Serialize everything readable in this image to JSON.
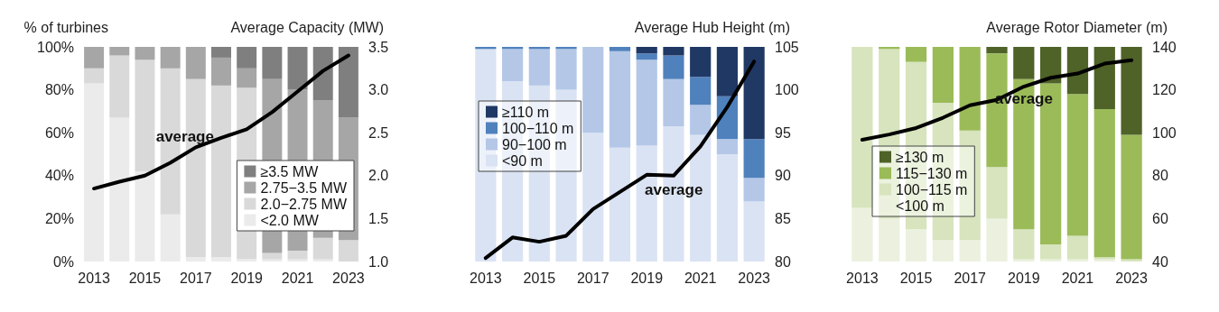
{
  "chart_data": [
    {
      "type": "bar",
      "stacked": true,
      "ylabel": "% of turbines",
      "y2label": "Average Capacity (MW)",
      "categories": [
        "2013",
        null,
        "2015",
        null,
        "2017",
        null,
        "2019",
        null,
        "2021",
        null,
        "2023"
      ],
      "ylim": [
        0,
        100
      ],
      "yticks": [
        {
          "value": 0,
          "label": "0%"
        },
        {
          "value": 20,
          "label": "20%"
        },
        {
          "value": 40,
          "label": "40%"
        },
        {
          "value": 60,
          "label": "60%"
        },
        {
          "value": 80,
          "label": "80%"
        },
        {
          "value": 100,
          "label": "100%"
        }
      ],
      "y2lim": [
        1,
        3.5
      ],
      "y2ticks": [
        {
          "value": 1,
          "label": "1.0"
        },
        {
          "value": 1.5,
          "label": "1.5"
        },
        {
          "value": 2,
          "label": "2.0"
        },
        {
          "value": 2.5,
          "label": "2.5"
        },
        {
          "value": 3,
          "label": "3.0"
        },
        {
          "value": 3.5,
          "label": "3.5"
        }
      ],
      "legend": "bottom right",
      "grid": false,
      "marker": "none",
      "series": [
        {
          "name": "<2.0 MW",
          "color": "#ebebeb",
          "values": [
            83,
            67,
            42,
            22,
            2,
            2,
            1,
            1,
            1,
            1,
            0
          ]
        },
        {
          "name": "2.0−2.75 MW",
          "color": "#d9d9d9",
          "values": [
            7,
            29,
            52,
            68,
            83,
            80,
            80,
            3,
            4,
            10,
            10
          ]
        },
        {
          "name": "2.75−3.5 MW",
          "color": "#a6a6a6",
          "values": [
            10,
            4,
            6,
            10,
            15,
            13,
            9,
            81,
            75,
            64,
            57
          ]
        },
        {
          "name": "≥3.5 MW",
          "color": "#7f7f7f",
          "values": [
            0,
            0,
            0,
            0,
            0,
            5,
            10,
            15,
            20,
            25,
            33
          ]
        },
        {
          "name": "average",
          "type": "line",
          "axis": "y2",
          "color": "#000000",
          "values": [
            1.85,
            1.93,
            2.0,
            2.15,
            2.33,
            2.44,
            2.54,
            2.74,
            2.98,
            3.22,
            3.4
          ]
        }
      ]
    },
    {
      "type": "bar",
      "stacked": true,
      "y2label": "Average Hub Height (m)",
      "categories": [
        "2013",
        null,
        "2015",
        null,
        "2017",
        null,
        "2019",
        null,
        "2021",
        null,
        "2023"
      ],
      "ylim": [
        0,
        100
      ],
      "y2lim": [
        80,
        105
      ],
      "y2ticks": [
        80,
        85,
        90,
        95,
        100,
        105
      ],
      "legend": "top left",
      "grid": false,
      "marker": "none",
      "series": [
        {
          "name": "<90 m",
          "color": "#dae3f3",
          "values": [
            99,
            84,
            82,
            80,
            60,
            53,
            54,
            63,
            59,
            50,
            28
          ]
        },
        {
          "name": "90−100 m",
          "color": "#b4c7e7",
          "values": [
            0,
            15,
            17,
            19,
            40,
            45,
            40,
            22,
            14,
            7,
            11
          ]
        },
        {
          "name": "100−110 m",
          "color": "#4f81bd",
          "values": [
            1,
            1,
            1,
            1,
            0,
            2,
            3,
            11,
            13,
            20,
            18
          ]
        },
        {
          "name": "≥110 m",
          "color": "#203864",
          "values": [
            0,
            0,
            0,
            0,
            0,
            0,
            3,
            4,
            14,
            23,
            43
          ]
        },
        {
          "name": "average",
          "type": "line",
          "axis": "y2",
          "color": "#000000",
          "values": [
            80.4,
            82.8,
            82.3,
            83.0,
            86.1,
            88.1,
            90.1,
            90.0,
            93.4,
            98.0,
            103.3
          ]
        }
      ]
    },
    {
      "type": "bar",
      "stacked": true,
      "y2label": "Average Rotor Diameter (m)",
      "categories": [
        "2013",
        null,
        "2015",
        null,
        "2017",
        null,
        "2019",
        null,
        "2021",
        null,
        "2023"
      ],
      "ylim": [
        0,
        100
      ],
      "y2lim": [
        40,
        140
      ],
      "y2ticks": [
        40,
        60,
        80,
        100,
        120,
        140
      ],
      "legend": "bottom left",
      "grid": false,
      "marker": "none",
      "series": [
        {
          "name": "<100 m",
          "color": "#ebf1de",
          "values": [
            25,
            20,
            15,
            10,
            10,
            20,
            1,
            1,
            1,
            1,
            0
          ]
        },
        {
          "name": "100−115 m",
          "color": "#d7e4bd",
          "values": [
            75,
            79,
            78,
            64,
            51,
            24,
            14,
            7,
            11,
            1,
            1
          ]
        },
        {
          "name": "115−130 m",
          "color": "#9bbb59",
          "values": [
            0,
            1,
            7,
            26,
            39,
            53,
            70,
            75,
            66,
            69,
            58
          ]
        },
        {
          "name": "≥130 m",
          "color": "#4f6228",
          "values": [
            0,
            0,
            0,
            0,
            0,
            3,
            15,
            17,
            22,
            29,
            41
          ]
        },
        {
          "name": "average",
          "type": "line",
          "axis": "y2",
          "color": "#000000",
          "values": [
            96.7,
            99.2,
            102.2,
            107.0,
            112.8,
            115.3,
            121.5,
            125.6,
            127.6,
            132.2,
            133.8
          ]
        }
      ]
    }
  ]
}
